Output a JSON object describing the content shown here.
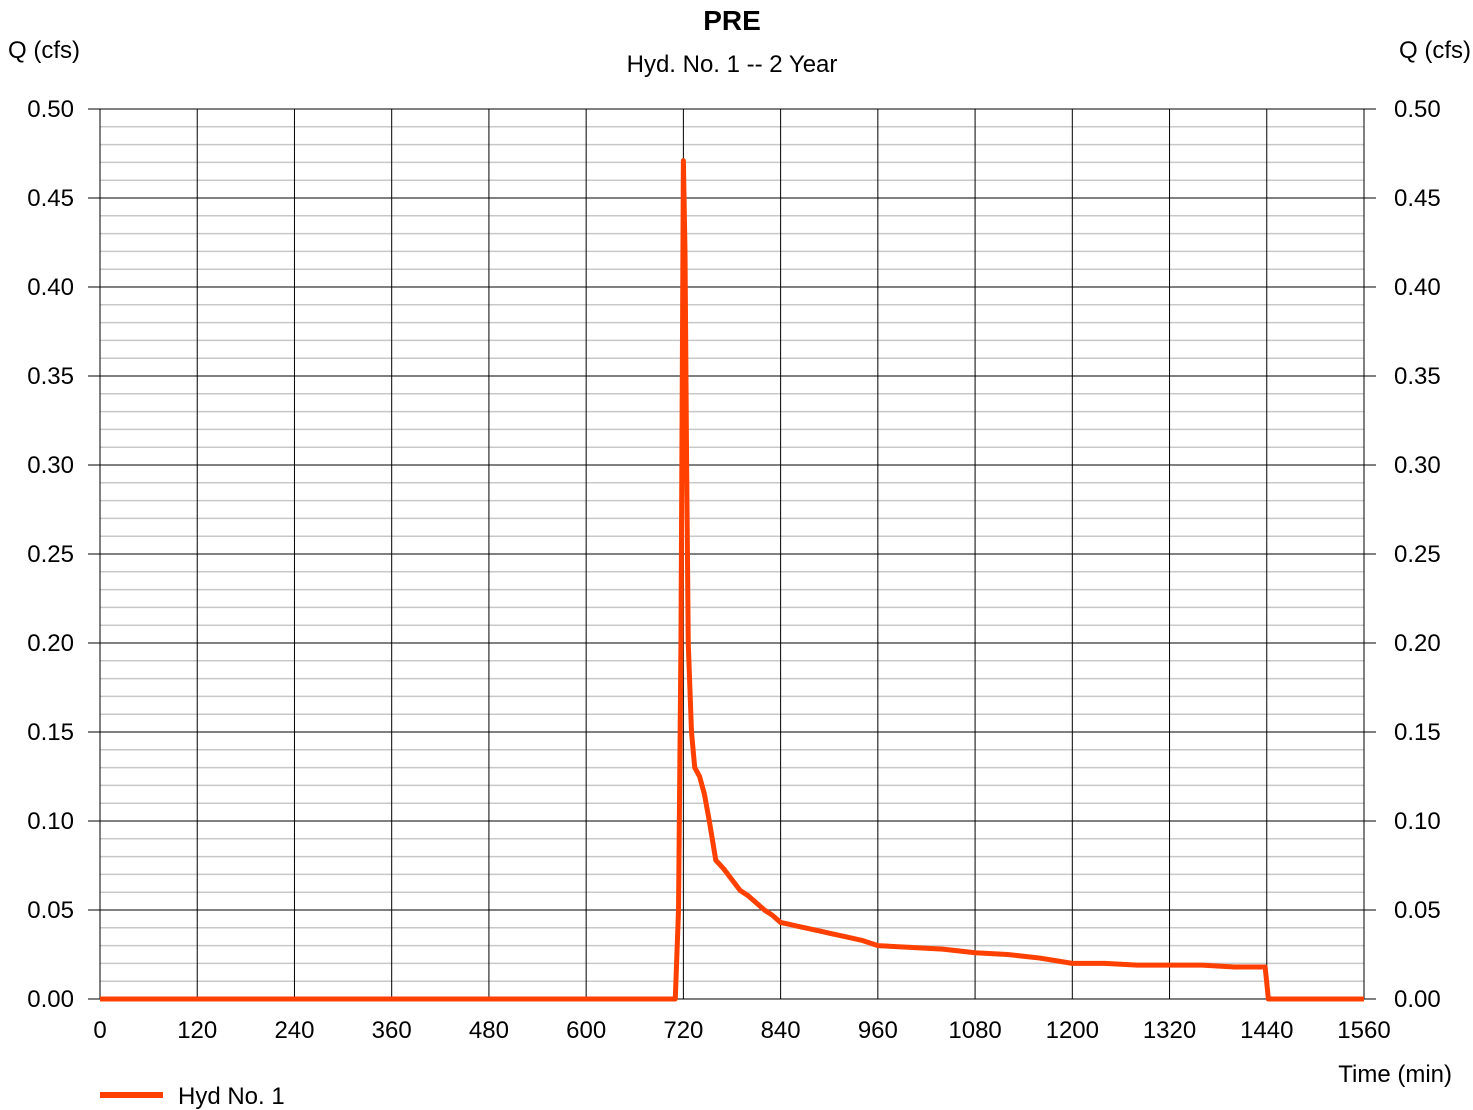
{
  "chart_data": {
    "type": "line",
    "title": "PRE",
    "subtitle": "Hyd. No. 1 -- 2 Year",
    "ylabel_left": "Q (cfs)",
    "ylabel_right": "Q (cfs)",
    "xlabel": "Time (min)",
    "xlim": [
      0,
      1560
    ],
    "ylim": [
      0,
      0.5
    ],
    "x_ticks": [
      0,
      120,
      240,
      360,
      480,
      600,
      720,
      840,
      960,
      1080,
      1200,
      1320,
      1440,
      1560
    ],
    "x_tick_labels": [
      "0",
      "120",
      "240",
      "360",
      "480",
      "600",
      "720",
      "840",
      "960",
      "1080",
      "1200",
      "1320",
      "1440",
      "1560"
    ],
    "y_ticks": [
      0,
      0.05,
      0.1,
      0.15,
      0.2,
      0.25,
      0.3,
      0.35,
      0.4,
      0.45,
      0.5
    ],
    "y_tick_labels": [
      "0.00",
      "0.05",
      "0.10",
      "0.15",
      "0.20",
      "0.25",
      "0.30",
      "0.35",
      "0.40",
      "0.45",
      "0.50"
    ],
    "grid": true,
    "minor_y_step": 0.01,
    "legend_position": "bottom-left",
    "series": [
      {
        "name": "Hyd No. 1",
        "color": "#ff4000",
        "x": [
          0,
          710,
          714,
          717,
          720,
          722,
          724,
          726,
          730,
          734,
          740,
          746,
          752,
          760,
          770,
          780,
          790,
          800,
          810,
          820,
          830,
          840,
          850,
          860,
          870,
          880,
          890,
          900,
          920,
          940,
          960,
          1000,
          1040,
          1080,
          1120,
          1160,
          1200,
          1240,
          1280,
          1320,
          1360,
          1400,
          1438,
          1442,
          1446,
          1560
        ],
        "values": [
          0.0,
          0.0,
          0.05,
          0.2,
          0.471,
          0.42,
          0.3,
          0.2,
          0.15,
          0.13,
          0.125,
          0.115,
          0.1,
          0.078,
          0.073,
          0.067,
          0.061,
          0.058,
          0.054,
          0.05,
          0.047,
          0.043,
          0.042,
          0.041,
          0.04,
          0.039,
          0.038,
          0.037,
          0.035,
          0.033,
          0.03,
          0.029,
          0.028,
          0.026,
          0.025,
          0.023,
          0.02,
          0.02,
          0.019,
          0.019,
          0.019,
          0.018,
          0.018,
          0.0,
          0.0,
          0.0
        ]
      }
    ]
  },
  "colors": {
    "series": "#ff4000",
    "major_grid": "#000000",
    "minor_grid": "#c8c8c8"
  }
}
